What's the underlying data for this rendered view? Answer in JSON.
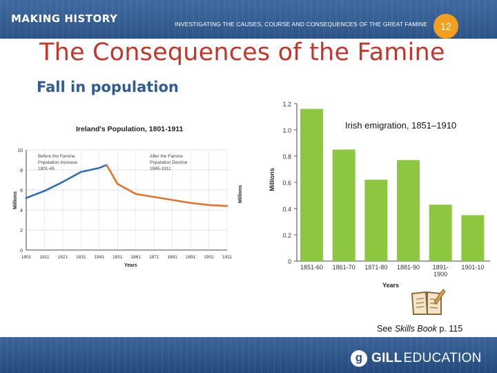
{
  "header": {
    "brand": "MAKING HISTORY",
    "subtitle": "INVESTIGATING THE CAUSES, COURSE AND CONSEQUENCES OF THE GREAT FAMINE",
    "badge": "12"
  },
  "title": "The Consequences of the Famine",
  "section_heading": "Fall in population",
  "skills_note": {
    "prefix": "See ",
    "book": "Skills Book",
    "suffix": " p. 115"
  },
  "footer": {
    "logo_letter": "g",
    "logo_bold": "GILL",
    "logo_light": "EDUCATION"
  },
  "colors": {
    "line": "#2f6db5",
    "decline": "#e0742a",
    "bars": "#8dc63f",
    "title": "#c4352b",
    "heading": "#2f5c93"
  },
  "chart_data": [
    {
      "type": "line",
      "title": "Ireland's Population, 1801-1911",
      "xlabel": "Years",
      "ylabel": "Millions",
      "ylabel_right": "Millions",
      "xlim": [
        1801,
        1911
      ],
      "ylim": [
        0,
        10
      ],
      "yticks": [
        "0",
        "2",
        "4",
        "6",
        "8",
        "10"
      ],
      "xticks": [
        "1801",
        "1811",
        "1821",
        "1831",
        "1841",
        "1851",
        "1861",
        "1871",
        "1881",
        "1891",
        "1901",
        "1911"
      ],
      "annotations": [
        {
          "lines": [
            "Before the Famine",
            "Population increase",
            "1801-45"
          ]
        },
        {
          "lines": [
            "After the Famine",
            "Population Decline",
            "1845-1911"
          ]
        }
      ],
      "series": [
        {
          "name": "Before the Famine",
          "x": [
            1801,
            1811,
            1821,
            1831,
            1841,
            1845
          ],
          "values": [
            5.2,
            5.9,
            6.8,
            7.8,
            8.2,
            8.5
          ]
        },
        {
          "name": "After the Famine",
          "x": [
            1845,
            1851,
            1861,
            1871,
            1881,
            1891,
            1901,
            1911
          ],
          "values": [
            8.5,
            6.6,
            5.6,
            5.3,
            5.0,
            4.7,
            4.5,
            4.4
          ]
        }
      ]
    },
    {
      "type": "bar",
      "title": "Irish emigration, 1851–1910",
      "xlabel": "Years",
      "ylabel": "Millions",
      "ylim": [
        0,
        1.2
      ],
      "yticks": [
        "0",
        "0.2",
        "0.4",
        "0.6",
        "0.8",
        "1.0",
        "1.2"
      ],
      "categories": [
        "1851-60",
        "1861-70",
        "1871-80",
        "1881-90",
        "1891-1900",
        "1901-10"
      ],
      "values": [
        1.16,
        0.85,
        0.62,
        0.77,
        0.43,
        0.35
      ]
    }
  ]
}
